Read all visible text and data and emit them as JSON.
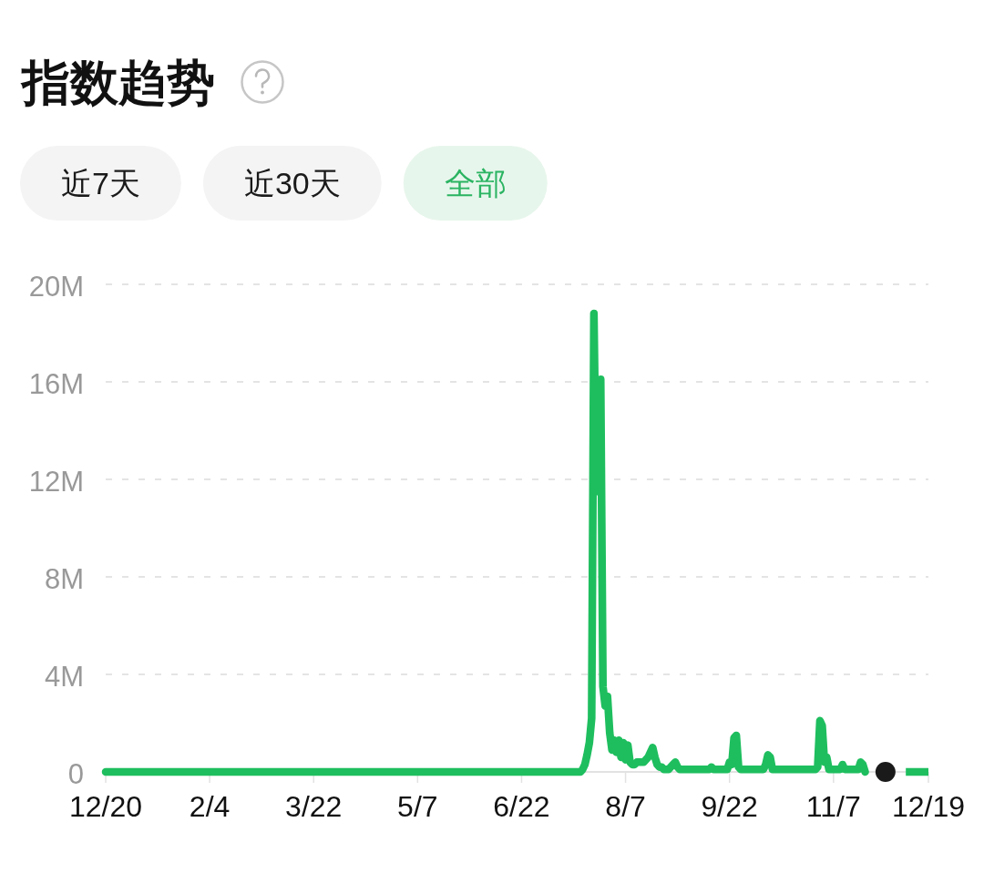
{
  "chart_data": {
    "type": "line",
    "title": "指数趋势",
    "annotations": [
      "近7天",
      "近30天",
      "全部"
    ],
    "categories": [
      "12/20",
      null,
      null,
      null,
      null,
      null,
      null,
      null,
      null,
      null,
      null,
      null,
      null,
      null,
      null,
      null,
      null,
      null,
      null,
      null,
      null,
      null,
      null,
      null,
      null,
      null,
      null,
      null,
      null,
      null,
      null,
      null,
      null,
      null,
      null,
      null,
      null,
      null,
      null,
      null,
      null,
      null,
      null,
      null,
      null,
      null,
      "2/4",
      null,
      null,
      null,
      null,
      null,
      null,
      null,
      null,
      null,
      null,
      null,
      null,
      null,
      null,
      null,
      null,
      null,
      null,
      null,
      null,
      null,
      null,
      null,
      null,
      null,
      null,
      null,
      null,
      null,
      null,
      null,
      null,
      null,
      null,
      null,
      null,
      null,
      null,
      null,
      null,
      null,
      null,
      null,
      null,
      null,
      "3/22",
      null,
      null,
      null,
      null,
      null,
      null,
      null,
      null,
      null,
      null,
      null,
      null,
      null,
      null,
      null,
      null,
      null,
      null,
      null,
      null,
      null,
      null,
      null,
      null,
      null,
      null,
      null,
      null,
      null,
      null,
      null,
      null,
      null,
      null,
      null,
      null,
      null,
      null,
      null,
      null,
      null,
      null,
      null,
      null,
      null,
      "5/7",
      null,
      null,
      null,
      null,
      null,
      null,
      null,
      null,
      null,
      null,
      null,
      null,
      null,
      null,
      null,
      null,
      null,
      null,
      null,
      null,
      null,
      null,
      null,
      null,
      null,
      null,
      null,
      null,
      null,
      null,
      null,
      null,
      null,
      null,
      null,
      null,
      null,
      null,
      null,
      null,
      null,
      null,
      null,
      null,
      null,
      "6/22",
      null,
      null,
      null,
      null,
      null,
      null,
      null,
      null,
      null,
      null,
      null,
      null,
      null,
      null,
      null,
      null,
      null,
      null,
      null,
      null,
      null,
      null,
      null,
      null,
      null,
      null,
      null,
      null,
      null,
      null,
      null,
      null,
      null,
      null,
      null,
      null,
      null,
      null,
      null,
      null,
      null,
      null,
      null,
      null,
      null,
      "8/7",
      null,
      null,
      null,
      null,
      null,
      null,
      null,
      null,
      null,
      null,
      null,
      null,
      null,
      null,
      null,
      null,
      null,
      null,
      null,
      null,
      null,
      null,
      null,
      null,
      null,
      null,
      null,
      null,
      null,
      null,
      null,
      null,
      null,
      null,
      null,
      null,
      null,
      null,
      null,
      null,
      null,
      null,
      null,
      null,
      null,
      "9/22",
      null,
      null,
      null,
      null,
      null,
      null,
      null,
      null,
      null,
      null,
      null,
      null,
      null,
      null,
      null,
      null,
      null,
      null,
      null,
      null,
      null,
      null,
      null,
      null,
      null,
      null,
      null,
      null,
      null,
      null,
      null,
      null,
      null,
      null,
      null,
      null,
      null,
      null,
      null,
      null,
      null,
      null,
      null,
      null,
      null,
      "11/7",
      null,
      null,
      null,
      null,
      null,
      null,
      null,
      null,
      null,
      null,
      null,
      null,
      null,
      null,
      null,
      null,
      null,
      null,
      null,
      null,
      null,
      null,
      null,
      null,
      null,
      null,
      null,
      null,
      null,
      null,
      null,
      null,
      null,
      null,
      null,
      null,
      null,
      null,
      null,
      null,
      null,
      "12/19"
    ],
    "ylim": [
      0,
      20000000
    ],
    "yticks": [
      0,
      {
        "value": 4000000,
        "label": "4M"
      },
      {
        "value": 8000000,
        "label": "8M"
      },
      {
        "value": 12000000,
        "label": "12M"
      },
      {
        "value": 16000000,
        "label": "16M"
      },
      {
        "value": 20000000,
        "label": "20M"
      }
    ],
    "grid": "y",
    "series": [
      {
        "color": "#1ebe5e",
        "values": [
          0,
          0,
          0,
          0,
          0,
          0,
          0,
          0,
          0,
          0,
          0,
          0,
          0,
          0,
          0,
          0,
          0,
          0,
          0,
          0,
          0,
          0,
          0,
          0,
          0,
          0,
          0,
          0,
          0,
          0,
          0,
          0,
          0,
          0,
          0,
          0,
          0,
          0,
          0,
          0,
          0,
          0,
          0,
          0,
          0,
          0,
          0,
          0,
          0,
          0,
          0,
          0,
          0,
          0,
          0,
          0,
          0,
          0,
          0,
          0,
          0,
          0,
          0,
          0,
          0,
          0,
          0,
          0,
          0,
          0,
          0,
          0,
          0,
          0,
          0,
          0,
          0,
          0,
          0,
          0,
          0,
          0,
          0,
          0,
          0,
          0,
          0,
          0,
          0,
          0,
          0,
          0,
          0,
          0,
          0,
          0,
          0,
          0,
          0,
          0,
          0,
          0,
          0,
          0,
          0,
          0,
          0,
          0,
          0,
          0,
          0,
          0,
          0,
          0,
          0,
          0,
          0,
          0,
          0,
          0,
          0,
          0,
          0,
          0,
          0,
          0,
          0,
          0,
          0,
          0,
          0,
          0,
          0,
          0,
          0,
          0,
          0,
          0,
          0,
          0,
          0,
          0,
          0,
          0,
          0,
          0,
          0,
          0,
          0,
          0,
          0,
          0,
          0,
          0,
          0,
          0,
          0,
          0,
          0,
          0,
          0,
          0,
          0,
          0,
          0,
          0,
          0,
          0,
          0,
          0,
          0,
          0,
          0,
          0,
          0,
          0,
          0,
          0,
          0,
          0,
          0,
          0,
          0,
          0,
          0,
          0,
          0,
          0,
          0,
          0,
          0,
          0,
          0,
          0,
          0,
          0,
          0,
          0,
          0,
          0,
          0,
          0,
          0,
          0,
          0,
          0,
          0,
          0,
          0,
          0,
          0,
          100000,
          300000,
          700000,
          1200000,
          2200000,
          18800000,
          11500000,
          12000000,
          16100000,
          3500000,
          2700000,
          3100000,
          1600000,
          900000,
          1300000,
          800000,
          1300000,
          600000,
          1200000,
          500000,
          1100000,
          400000,
          300000,
          300000,
          400000,
          400000,
          400000,
          400000,
          500000,
          600000,
          800000,
          1000000,
          600000,
          300000,
          200000,
          200000,
          100000,
          100000,
          100000,
          200000,
          300000,
          400000,
          200000,
          100000,
          100000,
          100000,
          100000,
          100000,
          100000,
          100000,
          100000,
          100000,
          100000,
          100000,
          100000,
          100000,
          100000,
          200000,
          100000,
          100000,
          100000,
          100000,
          100000,
          100000,
          100000,
          400000,
          300000,
          1400000,
          1500000,
          200000,
          100000,
          100000,
          100000,
          100000,
          100000,
          100000,
          100000,
          100000,
          100000,
          100000,
          100000,
          300000,
          700000,
          600000,
          100000,
          100000,
          100000,
          100000,
          100000,
          100000,
          100000,
          100000,
          100000,
          100000,
          100000,
          100000,
          100000,
          100000,
          100000,
          100000,
          100000,
          100000,
          100000,
          100000,
          200000,
          2100000,
          1900000,
          400000,
          600000,
          100000,
          100000,
          100000,
          100000,
          100000,
          100000,
          300000,
          100000,
          100000,
          100000,
          100000,
          100000,
          100000,
          100000,
          400000,
          300000,
          0,
          null,
          null,
          null,
          null,
          null,
          null,
          null,
          null,
          null,
          null,
          null,
          null,
          null,
          null,
          null,
          null,
          null,
          null,
          null,
          null,
          null,
          null,
          null,
          null,
          null,
          null,
          null,
          null
        ]
      },
      {
        "color": "#1ebe5e",
        "line_style": "dashed",
        "values": [
          null,
          null,
          null,
          null,
          null,
          null,
          null,
          null,
          null,
          null,
          null,
          null,
          null,
          null,
          null,
          null,
          null,
          null,
          null,
          null,
          null,
          null,
          null,
          null,
          null,
          null,
          null,
          null,
          null,
          null,
          null,
          null,
          null,
          null,
          null,
          null,
          null,
          null,
          null,
          null,
          null,
          null,
          null,
          null,
          null,
          null,
          null,
          null,
          null,
          null,
          null,
          null,
          null,
          null,
          null,
          null,
          null,
          null,
          null,
          null,
          null,
          null,
          null,
          null,
          null,
          null,
          null,
          null,
          null,
          null,
          null,
          null,
          null,
          null,
          null,
          null,
          null,
          null,
          null,
          null,
          null,
          null,
          null,
          null,
          null,
          null,
          null,
          null,
          null,
          null,
          null,
          null,
          null,
          null,
          null,
          null,
          null,
          null,
          null,
          null,
          null,
          null,
          null,
          null,
          null,
          null,
          null,
          null,
          null,
          null,
          null,
          null,
          null,
          null,
          null,
          null,
          null,
          null,
          null,
          null,
          null,
          null,
          null,
          null,
          null,
          null,
          null,
          null,
          null,
          null,
          null,
          null,
          null,
          null,
          null,
          null,
          null,
          null,
          null,
          null,
          null,
          null,
          null,
          null,
          null,
          null,
          null,
          null,
          null,
          null,
          null,
          null,
          null,
          null,
          null,
          null,
          null,
          null,
          null,
          null,
          null,
          null,
          null,
          null,
          null,
          null,
          null,
          null,
          null,
          null,
          null,
          null,
          null,
          null,
          null,
          null,
          null,
          null,
          null,
          null,
          null,
          null,
          null,
          null,
          null,
          null,
          null,
          null,
          null,
          null,
          null,
          null,
          null,
          null,
          null,
          null,
          null,
          null,
          null,
          null,
          null,
          null,
          null,
          null,
          null,
          null,
          null,
          null,
          null,
          null,
          null,
          null,
          null,
          null,
          null,
          null,
          null,
          null,
          null,
          null,
          null,
          null,
          null,
          null,
          null,
          null,
          null,
          null,
          null,
          null,
          null,
          null,
          null,
          null,
          null,
          null,
          null,
          null,
          null,
          null,
          null,
          null,
          null,
          null,
          null,
          null,
          null,
          null,
          null,
          null,
          null,
          null,
          null,
          null,
          null,
          null,
          null,
          null,
          null,
          null,
          null,
          null,
          null,
          null,
          null,
          null,
          null,
          null,
          null,
          null,
          null,
          null,
          null,
          null,
          null,
          null,
          null,
          null,
          null,
          null,
          null,
          null,
          null,
          null,
          null,
          null,
          null,
          null,
          null,
          null,
          null,
          null,
          null,
          null,
          null,
          null,
          null,
          null,
          null,
          null,
          null,
          null,
          null,
          null,
          null,
          null,
          null,
          null,
          null,
          null,
          null,
          null,
          null,
          null,
          null,
          null,
          null,
          null,
          null,
          null,
          null,
          null,
          null,
          null,
          null,
          null,
          null,
          null,
          null,
          null,
          null,
          null,
          null,
          null,
          null,
          null,
          null,
          null,
          null,
          null,
          null,
          null,
          null,
          null,
          null,
          null,
          null,
          null,
          null,
          null,
          null,
          null,
          null,
          null,
          0,
          0,
          0,
          0,
          0,
          0,
          0,
          0,
          0,
          0,
          0
        ]
      },
      {
        "type": "scatter",
        "color": "#1a1a1a",
        "marker": "circle",
        "values": [
          null,
          null,
          null,
          null,
          null,
          null,
          null,
          null,
          null,
          null,
          null,
          null,
          null,
          null,
          null,
          null,
          null,
          null,
          null,
          null,
          null,
          null,
          null,
          null,
          null,
          null,
          null,
          null,
          null,
          null,
          null,
          null,
          null,
          null,
          null,
          null,
          null,
          null,
          null,
          null,
          null,
          null,
          null,
          null,
          null,
          null,
          null,
          null,
          null,
          null,
          null,
          null,
          null,
          null,
          null,
          null,
          null,
          null,
          null,
          null,
          null,
          null,
          null,
          null,
          null,
          null,
          null,
          null,
          null,
          null,
          null,
          null,
          null,
          null,
          null,
          null,
          null,
          null,
          null,
          null,
          null,
          null,
          null,
          null,
          null,
          null,
          null,
          null,
          null,
          null,
          null,
          null,
          null,
          null,
          null,
          null,
          null,
          null,
          null,
          null,
          null,
          null,
          null,
          null,
          null,
          null,
          null,
          null,
          null,
          null,
          null,
          null,
          null,
          null,
          null,
          null,
          null,
          null,
          null,
          null,
          null,
          null,
          null,
          null,
          null,
          null,
          null,
          null,
          null,
          null,
          null,
          null,
          null,
          null,
          null,
          null,
          null,
          null,
          null,
          null,
          null,
          null,
          null,
          null,
          null,
          null,
          null,
          null,
          null,
          null,
          null,
          null,
          null,
          null,
          null,
          null,
          null,
          null,
          null,
          null,
          null,
          null,
          null,
          null,
          null,
          null,
          null,
          null,
          null,
          null,
          null,
          null,
          null,
          null,
          null,
          null,
          null,
          null,
          null,
          null,
          null,
          null,
          null,
          null,
          null,
          null,
          null,
          null,
          null,
          null,
          null,
          null,
          null,
          null,
          null,
          null,
          null,
          null,
          null,
          null,
          null,
          null,
          null,
          null,
          null,
          null,
          null,
          null,
          null,
          null,
          null,
          null,
          null,
          null,
          null,
          null,
          null,
          null,
          null,
          null,
          null,
          null,
          null,
          null,
          null,
          null,
          null,
          null,
          null,
          null,
          null,
          null,
          null,
          null,
          null,
          null,
          null,
          null,
          null,
          null,
          null,
          null,
          null,
          null,
          null,
          null,
          null,
          null,
          null,
          null,
          null,
          null,
          null,
          null,
          null,
          null,
          null,
          null,
          null,
          null,
          null,
          null,
          null,
          null,
          null,
          null,
          null,
          null,
          null,
          null,
          null,
          null,
          null,
          null,
          null,
          null,
          null,
          null,
          null,
          null,
          null,
          null,
          null,
          null,
          null,
          null,
          null,
          null,
          null,
          null,
          null,
          null,
          null,
          null,
          null,
          null,
          null,
          null,
          null,
          null,
          null,
          null,
          null,
          null,
          null,
          null,
          null,
          null,
          null,
          null,
          null,
          null,
          null,
          null,
          null,
          null,
          null,
          null,
          null,
          null,
          null,
          null,
          null,
          null,
          null,
          null,
          null,
          null,
          null,
          null,
          null,
          null,
          null,
          null,
          null,
          null,
          null,
          null,
          null,
          null,
          null,
          null,
          null,
          null,
          null,
          0,
          null,
          null,
          null,
          null,
          null,
          null,
          null,
          null,
          null,
          null,
          null,
          null,
          null,
          null,
          null,
          null,
          null,
          null,
          null
        ]
      }
    ]
  }
}
